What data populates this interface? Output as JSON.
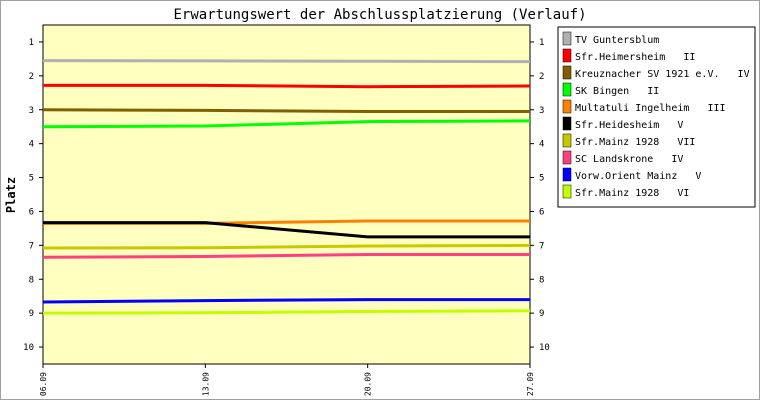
{
  "chart_data": {
    "type": "line",
    "title": "Erwartungswert der Abschlussplatzierung (Verlauf)",
    "ylabel": "Platz",
    "xlabel": "",
    "ylim": [
      10.5,
      0.5
    ],
    "y_inverted": true,
    "yticks": [
      1,
      2,
      3,
      4,
      5,
      6,
      7,
      8,
      9,
      10
    ],
    "x": [
      "06.09",
      "13.09",
      "20.09",
      "27.09"
    ],
    "xticks": [
      "06.09",
      "13.09",
      "20.09",
      "27.09"
    ],
    "plot_background": "#ffffc0",
    "grid": false,
    "legend_position": "right",
    "series": [
      {
        "name": "TV Guntersblum",
        "color": "#b0b0b0",
        "values": [
          1.55,
          1.56,
          1.57,
          1.58
        ]
      },
      {
        "name": "Sfr.Heimersheim   II",
        "color": "#ff0000",
        "values": [
          2.28,
          2.28,
          2.32,
          2.3
        ]
      },
      {
        "name": "Kreuznacher SV 1921 e.V.   IV",
        "color": "#806000",
        "values": [
          3.0,
          3.02,
          3.05,
          3.05
        ]
      },
      {
        "name": "SK Bingen   II",
        "color": "#00ff00",
        "values": [
          3.5,
          3.48,
          3.35,
          3.33
        ]
      },
      {
        "name": "Multatuli Ingelheim   III",
        "color": "#ff8000",
        "values": [
          6.35,
          6.35,
          6.28,
          6.28
        ]
      },
      {
        "name": "Sfr.Heidesheim   V",
        "color": "#000000",
        "values": [
          6.33,
          6.33,
          6.75,
          6.75
        ]
      },
      {
        "name": "Sfr.Mainz 1928   VII",
        "color": "#c8c800",
        "values": [
          7.08,
          7.07,
          7.02,
          7.0
        ]
      },
      {
        "name": "SC Landskrone   IV",
        "color": "#ff4080",
        "values": [
          7.35,
          7.33,
          7.27,
          7.27
        ]
      },
      {
        "name": "Vorw.Orient Mainz   V",
        "color": "#0000ff",
        "values": [
          8.67,
          8.63,
          8.6,
          8.6
        ]
      },
      {
        "name": "Sfr.Mainz 1928   VI",
        "color": "#c0ff00",
        "values": [
          9.0,
          8.99,
          8.95,
          8.93
        ]
      }
    ]
  }
}
